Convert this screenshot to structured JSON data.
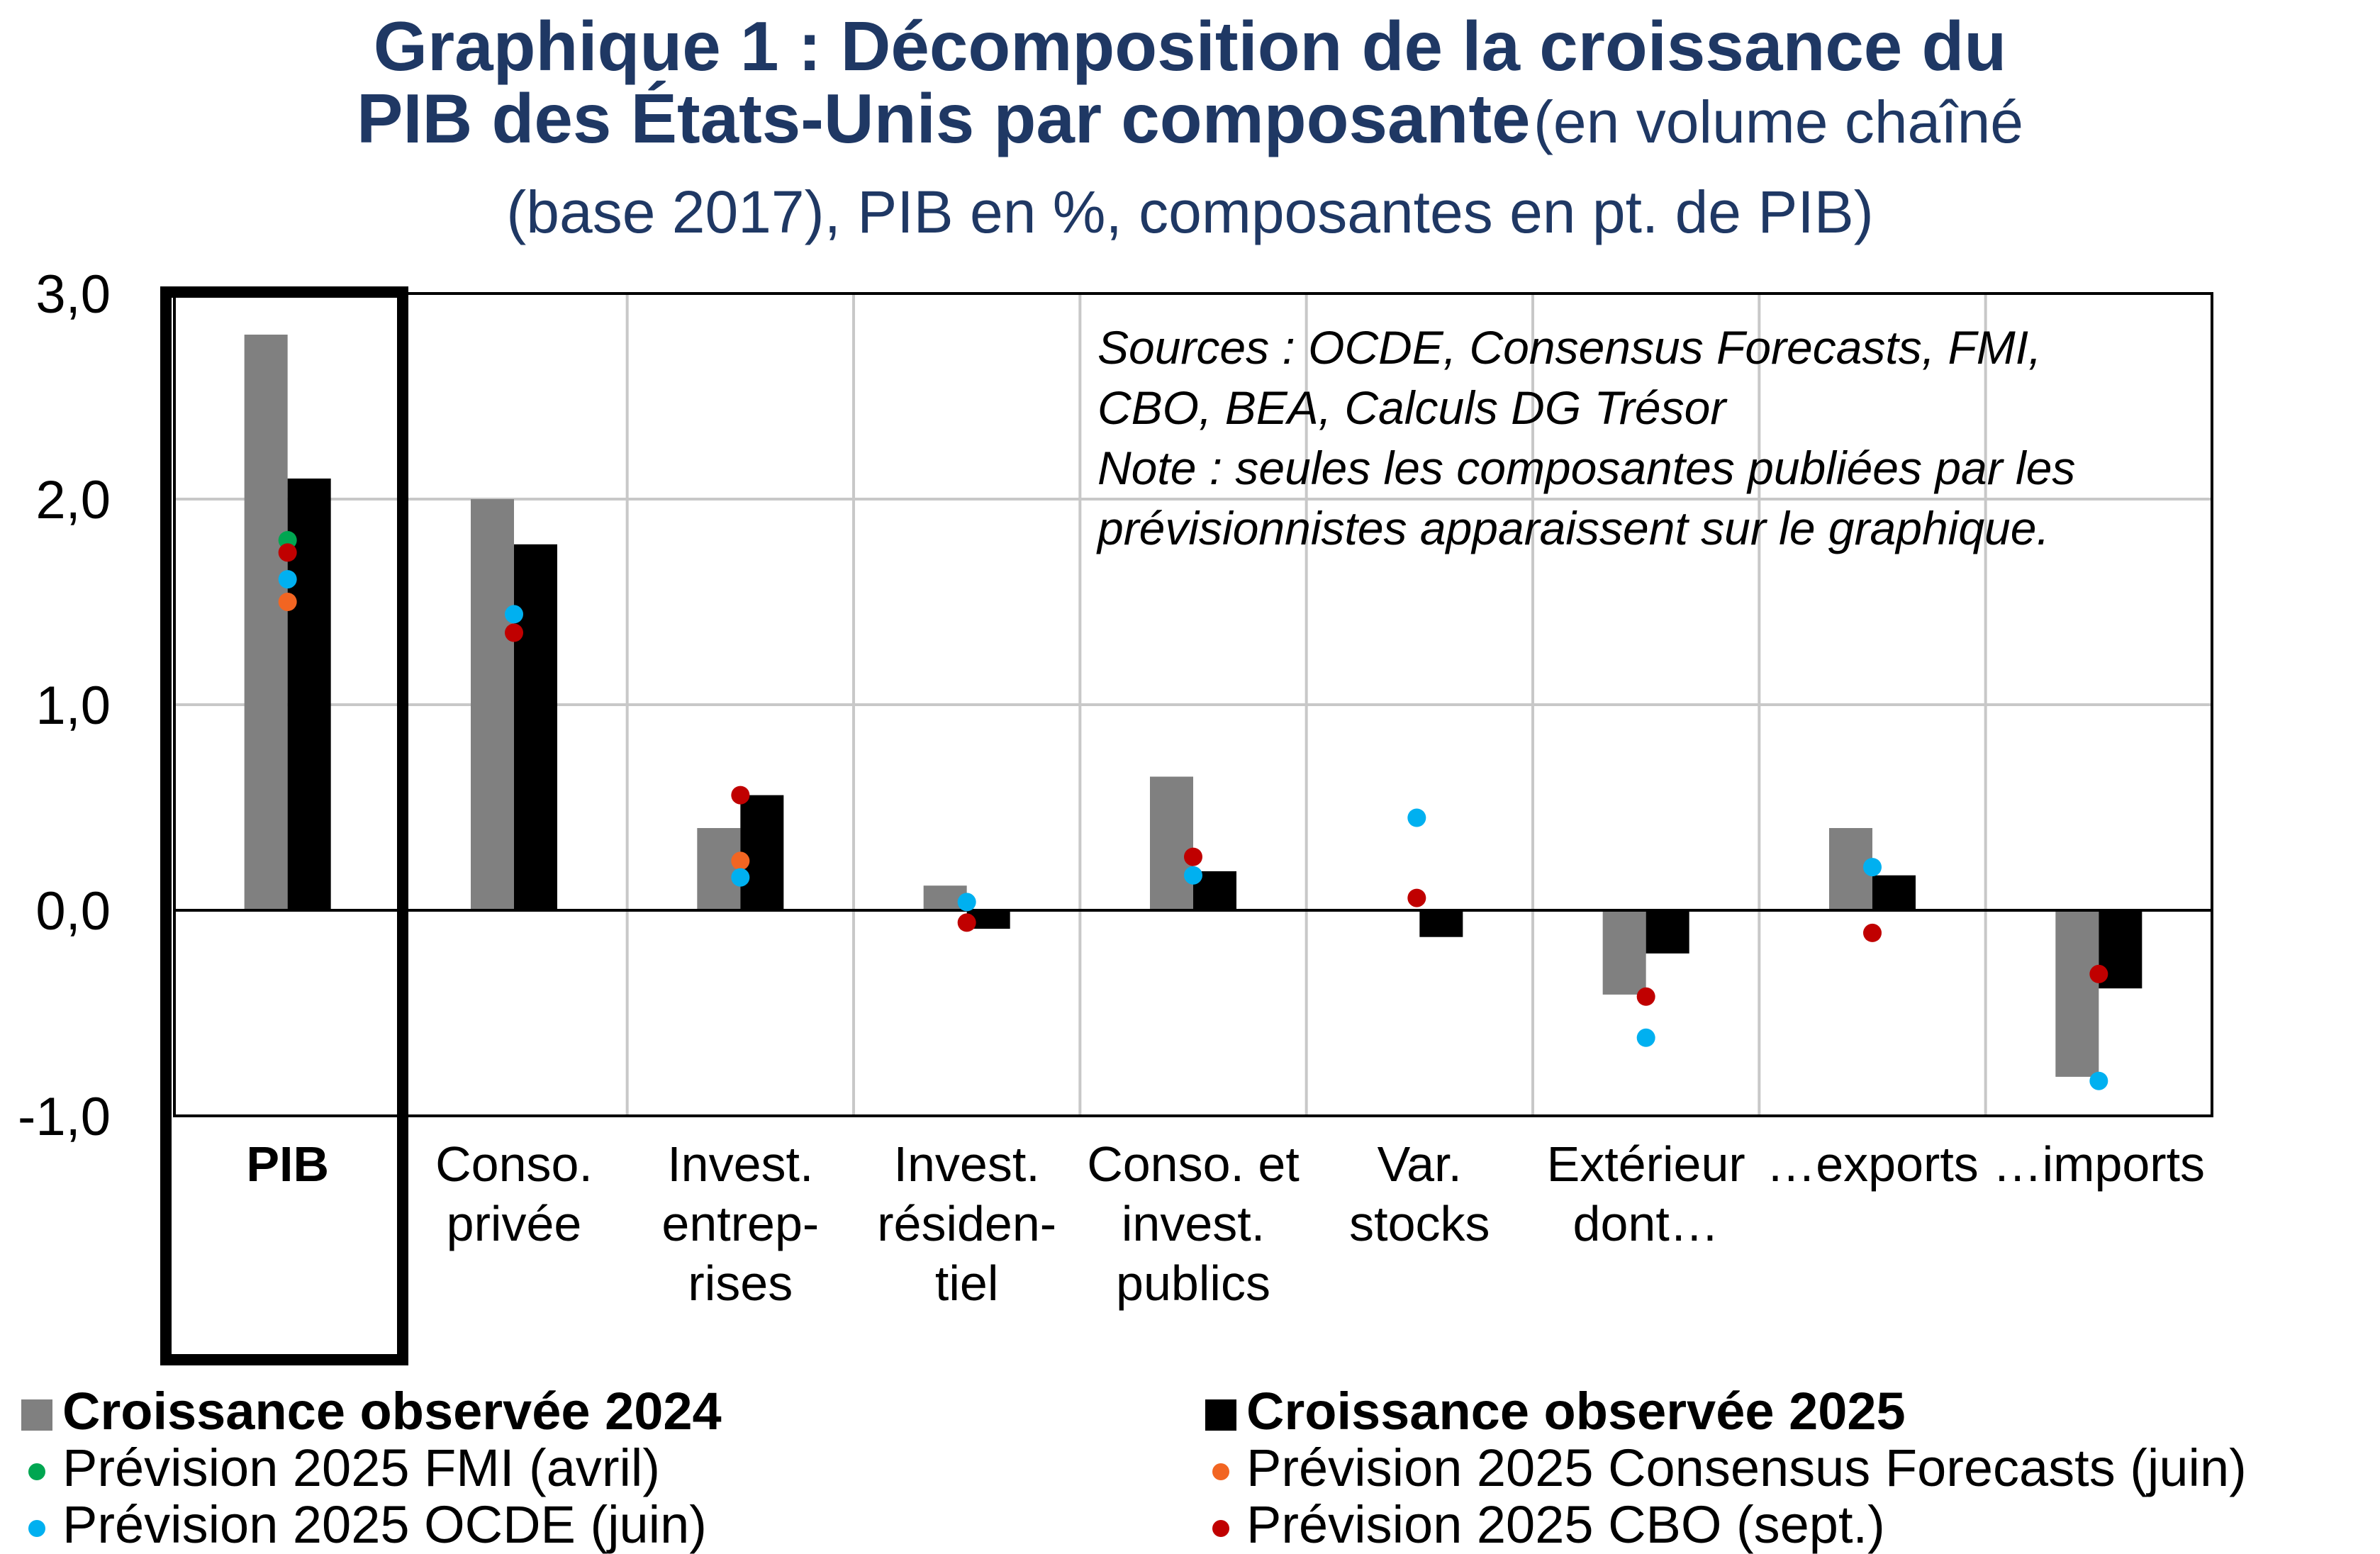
{
  "title": {
    "line1": "Graphique 1 : Décomposition de la croissance du",
    "line2_bold": "PIB des États-Unis par composante",
    "line2_rest": "(en volume chaîné",
    "line3": "(base 2017), PIB en %, composantes en pt. de PIB)"
  },
  "notes": {
    "line1": "Sources : OCDE, Consensus Forecasts, FMI,",
    "line2": "CBO, BEA, Calculs DG Trésor",
    "line3": "Note : seules les composantes publiées par les",
    "line4": "prévisionnistes apparaissent sur le graphique."
  },
  "colors": {
    "bar_2024": "#808080",
    "bar_2025": "#000000",
    "fmi": "#00a651",
    "consensus": "#f26522",
    "ocde": "#00b0f0",
    "cbo": "#c00000",
    "title": "#1f3864",
    "grid": "#c8c8c8"
  },
  "chart_data": {
    "type": "bar",
    "categories": [
      [
        "PIB"
      ],
      [
        "Conso.",
        "privée"
      ],
      [
        "Invest.",
        "entrep-",
        "rises"
      ],
      [
        "Invest.",
        "résiden-",
        "tiel"
      ],
      [
        "Conso. et",
        "invest.",
        "publics"
      ],
      [
        "Var.",
        "stocks"
      ],
      [
        "Extérieur",
        "dont…"
      ],
      [
        "…exports"
      ],
      [
        "…imports"
      ]
    ],
    "highlighted_category": "PIB",
    "ylim": [
      -1.0,
      3.0
    ],
    "yticks": [
      "3,0",
      "2,0",
      "1,0",
      "0,0",
      "-1,0"
    ],
    "ytick_values": [
      3.0,
      2.0,
      1.0,
      0.0,
      -1.0
    ],
    "grid": true,
    "series": [
      {
        "name": "Croissance observée 2024",
        "kind": "bar",
        "values": [
          2.8,
          2.0,
          0.4,
          0.12,
          0.65,
          null,
          -0.41,
          0.4,
          -0.81
        ]
      },
      {
        "name": "Croissance observée 2025",
        "kind": "bar",
        "values": [
          2.1,
          1.78,
          0.56,
          -0.09,
          0.19,
          -0.13,
          -0.21,
          0.17,
          -0.38
        ]
      },
      {
        "name": "Prévision 2025 FMI (avril)",
        "kind": "point",
        "values": [
          1.8,
          null,
          null,
          null,
          null,
          null,
          null,
          null,
          null
        ]
      },
      {
        "name": "Prévision 2025 Consensus Forecasts (juin)",
        "kind": "point",
        "values": [
          1.5,
          null,
          0.24,
          null,
          null,
          null,
          null,
          null,
          null
        ]
      },
      {
        "name": "Prévision 2025 OCDE (juin)",
        "kind": "point",
        "values": [
          1.61,
          1.44,
          0.16,
          0.04,
          0.17,
          0.45,
          -0.62,
          0.21,
          -0.83
        ]
      },
      {
        "name": "Prévision 2025 CBO (sept.)",
        "kind": "point",
        "values": [
          1.74,
          1.35,
          0.56,
          -0.06,
          0.26,
          0.06,
          -0.42,
          -0.11,
          -0.31
        ]
      }
    ],
    "legend_position": "bottom"
  },
  "legend": {
    "item1": "Croissance observée 2024",
    "item2": "Croissance observée 2025",
    "item3": "Prévision 2025 FMI (avril)",
    "item4": "Prévision 2025 Consensus Forecasts (juin)",
    "item5": "Prévision 2025 OCDE (juin)",
    "item6": "Prévision 2025 CBO (sept.)"
  }
}
